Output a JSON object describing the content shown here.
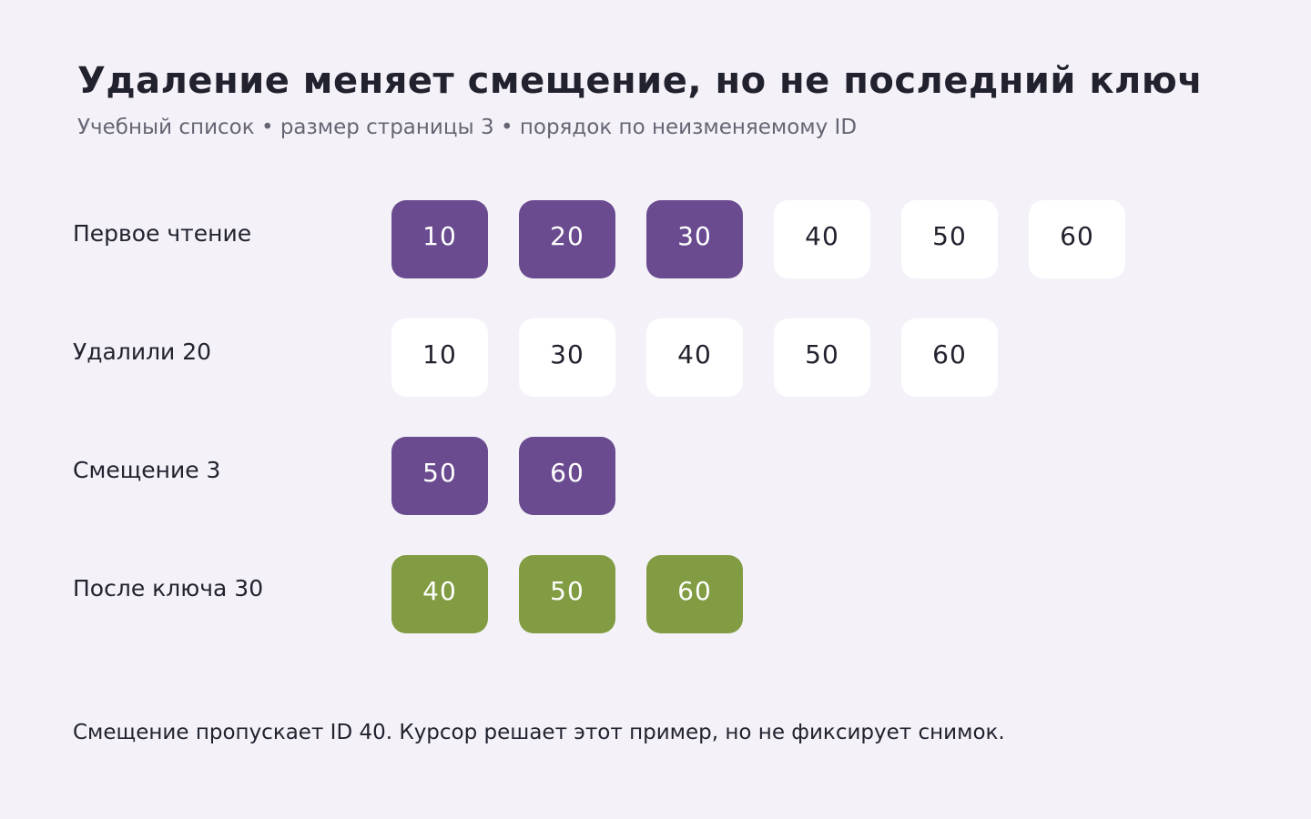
{
  "title": "Удаление меняет смещение, но не последний ключ",
  "subtitle": "Учебный список • размер страницы 3 • порядок по неизменяемому ID",
  "colors": {
    "background": "#f4f2f8",
    "page": "#6a4b90",
    "plain": "#ffffff",
    "keyset": "#819c42"
  },
  "rows": [
    {
      "label": "Первое чтение",
      "items": [
        {
          "id": "10",
          "style": "purple"
        },
        {
          "id": "20",
          "style": "purple"
        },
        {
          "id": "30",
          "style": "purple"
        },
        {
          "id": "40",
          "style": "plain"
        },
        {
          "id": "50",
          "style": "plain"
        },
        {
          "id": "60",
          "style": "plain"
        }
      ]
    },
    {
      "label": "Удалили 20",
      "items": [
        {
          "id": "10",
          "style": "plain"
        },
        {
          "id": "30",
          "style": "plain"
        },
        {
          "id": "40",
          "style": "plain"
        },
        {
          "id": "50",
          "style": "plain"
        },
        {
          "id": "60",
          "style": "plain"
        }
      ]
    },
    {
      "label": "Смещение 3",
      "items": [
        {
          "id": "50",
          "style": "purple"
        },
        {
          "id": "60",
          "style": "purple"
        }
      ]
    },
    {
      "label": "После ключа 30",
      "items": [
        {
          "id": "40",
          "style": "green"
        },
        {
          "id": "50",
          "style": "green"
        },
        {
          "id": "60",
          "style": "green"
        }
      ]
    }
  ],
  "note": "Смещение пропускает ID 40. Курсор решает этот пример, но не фиксирует снимок."
}
